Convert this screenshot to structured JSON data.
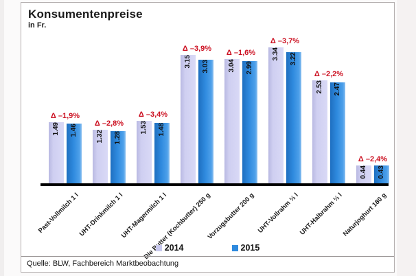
{
  "title": "Konsumentenpreise",
  "subtitle": "in Fr.",
  "source": "Quelle: BLW, Fachbereich Marktbeobachtung",
  "legend": {
    "items": [
      {
        "label": "2014",
        "color": "#c9c9ee"
      },
      {
        "label": "2015",
        "color": "#2e8ade"
      }
    ]
  },
  "chart_data": {
    "type": "bar",
    "categories": [
      "Past-Vollmilch 1 l",
      "UHT-Drinkmilch 1 l",
      "UHT-Magermilch 1 l",
      "Die Butter (Kochbutter) 250 g",
      "Vorzugsbutter 200 g",
      "UHT-Vollrahm ½ l",
      "UHT-Halbrahm ½ l",
      "Naturjoghurt 180 g"
    ],
    "series": [
      {
        "name": "2014",
        "color": "#cdcdee",
        "values": [
          1.49,
          1.32,
          1.53,
          3.15,
          3.04,
          3.34,
          2.53,
          0.44
        ]
      },
      {
        "name": "2015",
        "color": "#2e8ade",
        "values": [
          1.46,
          1.28,
          1.48,
          3.03,
          2.99,
          3.22,
          2.47,
          0.43
        ]
      }
    ],
    "delta_labels": [
      "Δ –1,9%",
      "Δ –2,8%",
      "Δ –3,4%",
      "Δ –3,9%",
      "Δ –1,6%",
      "Δ –3,7%",
      "Δ –2,2%",
      "Δ –2,4%"
    ],
    "delta_color": "#cc1122",
    "title": "Konsumentenpreise",
    "ylabel": "Fr.",
    "ylim": [
      0,
      3.5
    ],
    "grid": false,
    "legend_position": "bottom",
    "value_label_format": "0.00",
    "pixels_per_unit": 59.4
  }
}
